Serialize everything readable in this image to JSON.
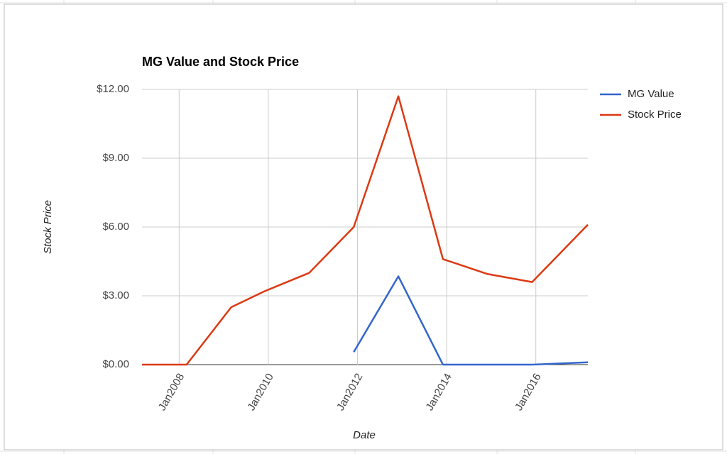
{
  "chart_data": {
    "type": "line",
    "title": "MG Value and Stock Price",
    "x_label": "Date",
    "y_label": "Stock Price",
    "x": [
      "2007-03",
      "2008-03",
      "2009-03",
      "2009-12",
      "2010-12",
      "2011-12",
      "2012-12",
      "2013-12",
      "2014-12",
      "2015-12",
      "2017-03"
    ],
    "series": [
      {
        "name": "MG Value",
        "color": "#3366cc",
        "values": [
          null,
          null,
          null,
          null,
          null,
          0.55,
          3.85,
          0,
          0,
          0,
          0.1
        ]
      },
      {
        "name": "Stock Price",
        "color": "#dc3912",
        "values": [
          0,
          0,
          2.5,
          3.2,
          4,
          6,
          11.7,
          4.6,
          3.95,
          3.6,
          6.1
        ]
      }
    ],
    "xlim": [
      "2007-03",
      "2017-03"
    ],
    "xticks": [
      {
        "value": "2008-01",
        "label": "Jan2008"
      },
      {
        "value": "2010-01",
        "label": "Jan2010"
      },
      {
        "value": "2012-01",
        "label": "Jan2012"
      },
      {
        "value": "2014-01",
        "label": "Jan2014"
      },
      {
        "value": "2016-01",
        "label": "Jan2016"
      }
    ],
    "ylim": [
      0,
      12
    ],
    "yticks": [
      {
        "value": 0,
        "label": "$0.00"
      },
      {
        "value": 3,
        "label": "$3.00"
      },
      {
        "value": 6,
        "label": "$6.00"
      },
      {
        "value": 9,
        "label": "$9.00"
      },
      {
        "value": 12,
        "label": "$12.00"
      }
    ],
    "grid": true,
    "legend": "right"
  }
}
